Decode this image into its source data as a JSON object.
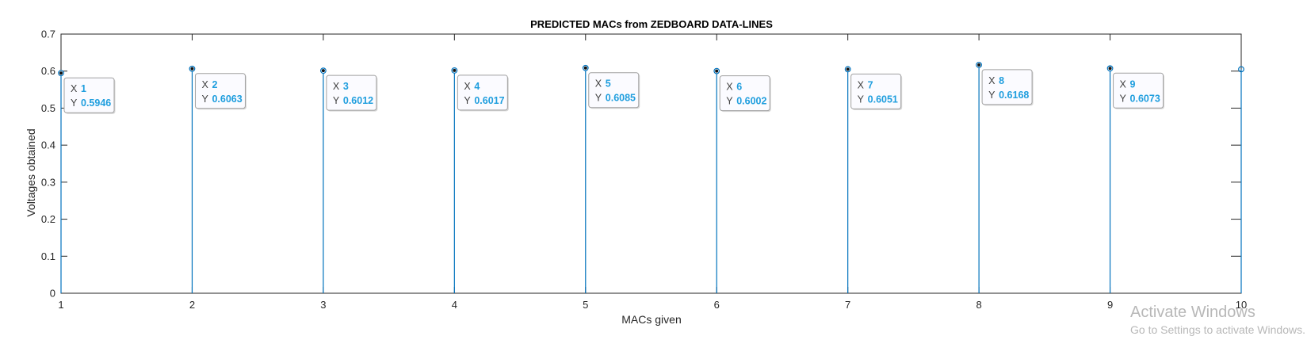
{
  "chart_data": {
    "type": "stem",
    "title": "PREDICTED MACs from ZEDBOARD DATA-LINES",
    "xlabel": "MACs given",
    "ylabel": "Voltages obtained",
    "xlim": [
      1,
      10
    ],
    "ylim": [
      0,
      0.7
    ],
    "x_ticks": [
      "1",
      "2",
      "3",
      "4",
      "5",
      "6",
      "7",
      "8",
      "9",
      "10"
    ],
    "y_ticks": [
      "0",
      "0.1",
      "0.2",
      "0.3",
      "0.4",
      "0.5",
      "0.6",
      "0.7"
    ],
    "x": [
      1,
      2,
      3,
      4,
      5,
      6,
      7,
      8,
      9,
      10
    ],
    "y": [
      0.5946,
      0.6063,
      0.6012,
      0.6017,
      0.6085,
      0.6002,
      0.6051,
      0.6168,
      0.6073,
      0.605
    ],
    "datatips": [
      {
        "x": "1",
        "y": "0.5946"
      },
      {
        "x": "2",
        "y": "0.6063"
      },
      {
        "x": "3",
        "y": "0.6012"
      },
      {
        "x": "4",
        "y": "0.6017"
      },
      {
        "x": "5",
        "y": "0.6085"
      },
      {
        "x": "6",
        "y": "0.6002"
      },
      {
        "x": "7",
        "y": "0.6051"
      },
      {
        "x": "8",
        "y": "0.6168"
      },
      {
        "x": "9",
        "y": "0.6073"
      }
    ],
    "datatip_x_label": "X",
    "datatip_y_label": "Y",
    "grid": false,
    "colors": {
      "stem": "#0072bd",
      "datatip_value": "#1f9ede",
      "axis": "#262626",
      "datatip_border": "#a0a0a0",
      "datatip_bg": "#fbfbff"
    }
  },
  "watermark": {
    "line1": "Activate Windows",
    "line2": "Go to Settings to activate Windows."
  }
}
